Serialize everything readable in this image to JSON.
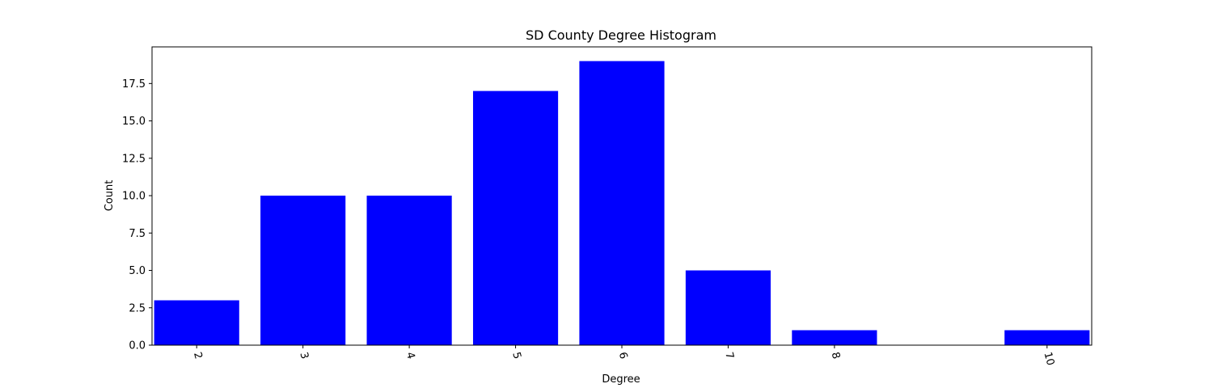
{
  "chart_data": {
    "type": "bar",
    "title": "SD County Degree Histogram",
    "xlabel": "Degree",
    "ylabel": "Count",
    "x": [
      2,
      3,
      4,
      5,
      6,
      7,
      8,
      10
    ],
    "x_tick_labels": [
      "2",
      "3",
      "4",
      "5",
      "6",
      "7",
      "8",
      "10"
    ],
    "values": [
      3,
      10,
      10,
      17,
      19,
      5,
      1,
      1
    ],
    "xlim": [
      1.58,
      10.42
    ],
    "ylim": [
      0,
      19.95
    ],
    "y_ticks": [
      0,
      2.5,
      5,
      7.5,
      10,
      12.5,
      15,
      17.5
    ],
    "y_tick_labels": [
      "0.0",
      "2.5",
      "5.0",
      "7.5",
      "10.0",
      "12.5",
      "15.0",
      "17.5"
    ],
    "bar_color": "#0000ff",
    "grid": false,
    "legend": "none"
  }
}
